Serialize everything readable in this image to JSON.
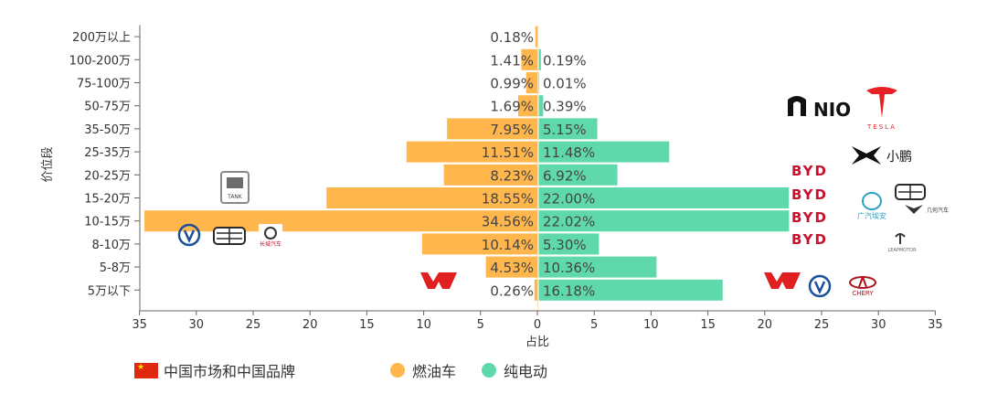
{
  "chart_data": {
    "type": "bar",
    "orientation": "horizontal-butterfly",
    "categories": [
      "200万以上",
      "100-200万",
      "75-100万",
      "50-75万",
      "35-50万",
      "25-35万",
      "20-25万",
      "15-20万",
      "10-15万",
      "8-10万",
      "5-8万",
      "5万以下"
    ],
    "series": [
      {
        "name": "燃油车",
        "color": "#ffb74d",
        "side": "left",
        "values": [
          0.18,
          1.41,
          0.99,
          1.69,
          7.95,
          11.51,
          8.23,
          18.55,
          34.56,
          10.14,
          4.53,
          0.26
        ],
        "labels": [
          "0.18%",
          "1.41%",
          "0.99%",
          "1.69%",
          "7.95%",
          "11.51%",
          "8.23%",
          "18.55%",
          "34.56%",
          "10.14%",
          "4.53%",
          "0.26%"
        ]
      },
      {
        "name": "纯电动",
        "color": "#5fd9ab",
        "side": "right",
        "values": [
          null,
          0.19,
          0.01,
          0.39,
          5.15,
          11.48,
          6.92,
          22.0,
          22.02,
          5.3,
          10.36,
          16.18
        ],
        "labels": [
          "",
          "0.19%",
          "0.01%",
          "0.39%",
          "5.15%",
          "11.48%",
          "6.92%",
          "22.00%",
          "22.02%",
          "5.30%",
          "10.36%",
          "16.18%"
        ]
      }
    ],
    "x_ticks": [
      "35",
      "30",
      "25",
      "20",
      "15",
      "10",
      "5",
      "0",
      "5",
      "10",
      "15",
      "20",
      "25",
      "30",
      "35"
    ],
    "xlim": [
      -35,
      35
    ],
    "xlabel": "占比",
    "ylabel": "价位段",
    "grid": false,
    "legend_position": "bottom"
  },
  "legend": {
    "flag_label": "中国市场和中国品牌",
    "fuel_label": "燃油车",
    "ev_label": "纯电动",
    "fuel_color": "#ffb74d",
    "ev_color": "#5fd9ab",
    "flag_color": "#de2910"
  },
  "brand_logos": [
    {
      "name": "Tank",
      "text": "TANK"
    },
    {
      "name": "Changan",
      "text": "V"
    },
    {
      "name": "Geely",
      "text": ""
    },
    {
      "name": "Great Wall",
      "text": "长城汽车"
    },
    {
      "name": "Wuling",
      "text": ""
    },
    {
      "name": "NIO",
      "text": "NIO"
    },
    {
      "name": "Tesla",
      "text": "TESLA"
    },
    {
      "name": "XPeng",
      "text": "小鹏"
    },
    {
      "name": "BYD",
      "text": "BYD"
    },
    {
      "name": "GAC Aion",
      "text": "广汽埃安"
    },
    {
      "name": "Leapmotor",
      "text": "LEAPMOTOR"
    },
    {
      "name": "Geometry",
      "text": "几何汽车"
    },
    {
      "name": "Chery",
      "text": "CHERY"
    }
  ]
}
